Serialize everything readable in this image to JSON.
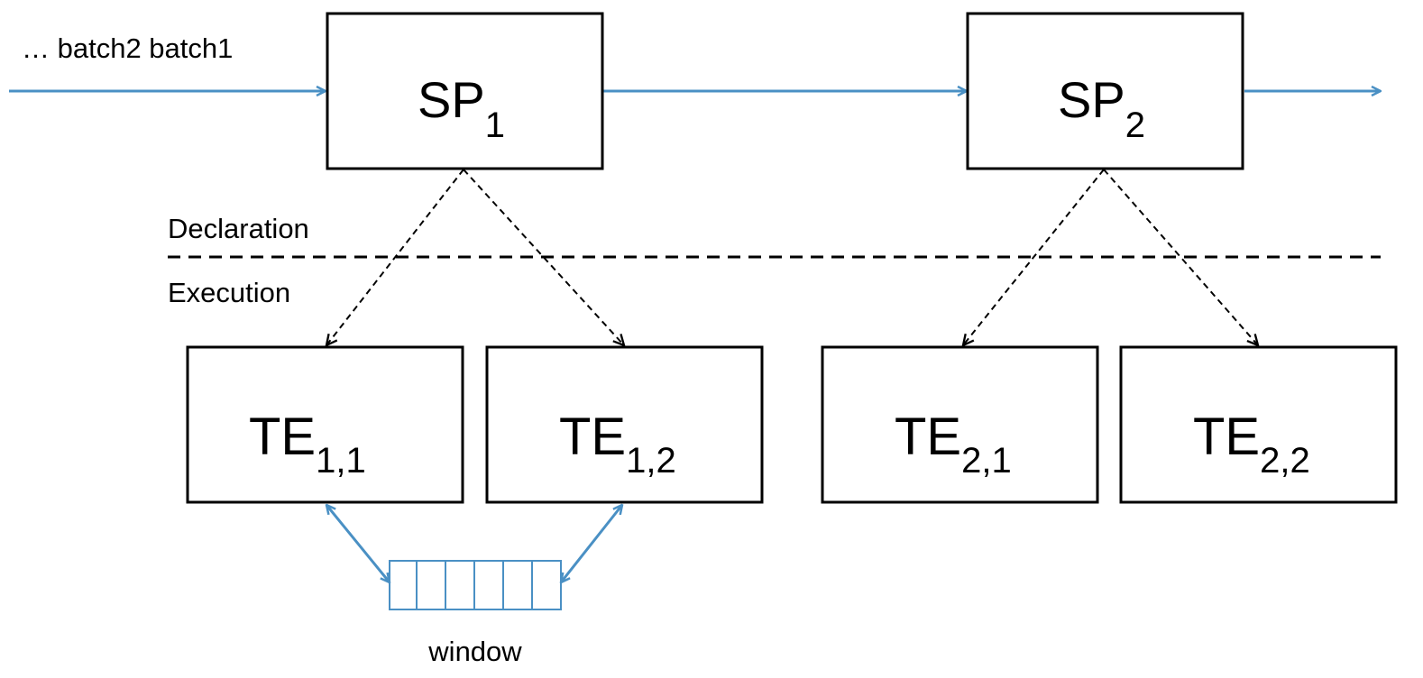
{
  "input_label": "…  batch2  batch1",
  "section_labels": {
    "declaration": "Declaration",
    "execution": "Execution"
  },
  "processors": [
    {
      "id": "sp1",
      "main": "SP",
      "sub": "1"
    },
    {
      "id": "sp2",
      "main": "SP",
      "sub": "2"
    }
  ],
  "executors": [
    {
      "id": "te11",
      "main": "TE",
      "sub": "1,1"
    },
    {
      "id": "te12",
      "main": "TE",
      "sub": "1,2"
    },
    {
      "id": "te21",
      "main": "TE",
      "sub": "2,1"
    },
    {
      "id": "te22",
      "main": "TE",
      "sub": "2,2"
    }
  ],
  "window_label": "window",
  "window_slots": 6,
  "colors": {
    "flow": "#4a90c4",
    "box_border": "#000000",
    "dashed": "#000000"
  }
}
